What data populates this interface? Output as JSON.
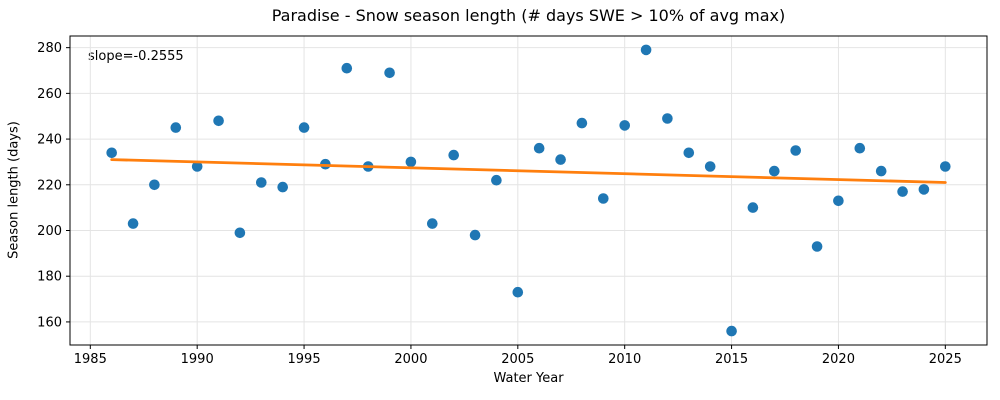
{
  "chart_data": {
    "type": "scatter",
    "title": "Paradise - Snow season length (# days SWE > 10% of avg max)",
    "xlabel": "Water Year",
    "ylabel": "Season length (days)",
    "annotation": "slope=-0.2555",
    "x": [
      1986,
      1987,
      1988,
      1989,
      1990,
      1991,
      1992,
      1993,
      1994,
      1995,
      1996,
      1997,
      1998,
      1999,
      2000,
      2001,
      2002,
      2003,
      2004,
      2005,
      2006,
      2007,
      2008,
      2009,
      2010,
      2011,
      2012,
      2013,
      2014,
      2015,
      2016,
      2017,
      2018,
      2019,
      2020,
      2021,
      2022,
      2023,
      2024,
      2025
    ],
    "y": [
      234,
      203,
      220,
      245,
      228,
      248,
      199,
      221,
      219,
      245,
      229,
      271,
      228,
      269,
      230,
      203,
      233,
      198,
      222,
      173,
      236,
      231,
      247,
      214,
      246,
      279,
      249,
      234,
      228,
      156,
      210,
      226,
      235,
      193,
      213,
      236,
      226,
      217,
      218,
      228
    ],
    "trend_line": {
      "slope": -0.2555,
      "x_start": 1986,
      "x_end": 2025,
      "y_start": 231.0,
      "y_end": 221.0
    },
    "xlim": [
      1984.05,
      2026.95
    ],
    "ylim": [
      149.9,
      285.1
    ],
    "xticks": [
      1985,
      1990,
      1995,
      2000,
      2005,
      2010,
      2015,
      2020,
      2025
    ],
    "yticks": [
      160,
      180,
      200,
      220,
      240,
      260,
      280
    ],
    "grid": true,
    "legend": "none",
    "colors": {
      "points": "#1f77b4",
      "trend": "#ff7f0e",
      "grid": "#e4e4e4",
      "spine": "#000000",
      "text": "#000000"
    }
  }
}
